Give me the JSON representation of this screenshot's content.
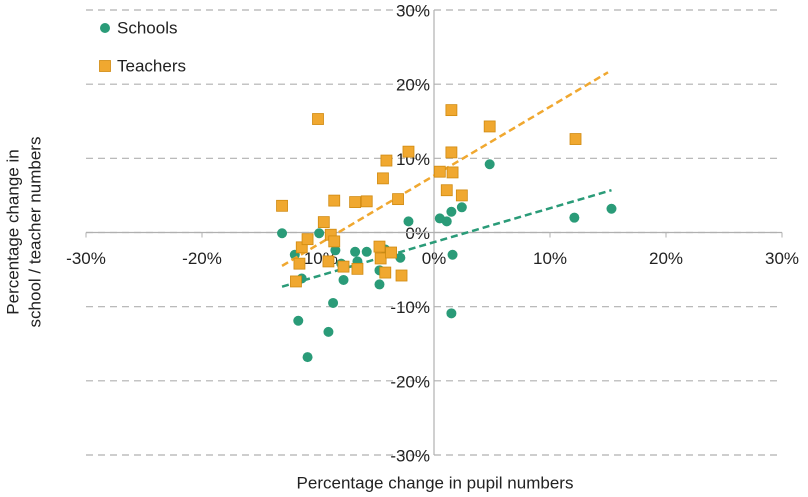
{
  "chart_data": {
    "type": "scatter",
    "xlabel": "Percentage change in pupil numbers",
    "ylabel": [
      "Percentage change in",
      "school / teacher numbers"
    ],
    "xlim": [
      -30,
      30
    ],
    "ylim": [
      -30,
      30
    ],
    "xticks": [
      {
        "value": -30,
        "label": "-30%"
      },
      {
        "value": -20,
        "label": "-20%"
      },
      {
        "value": -10,
        "label": "-10%"
      },
      {
        "value": 0,
        "label": "0%"
      },
      {
        "value": 10,
        "label": "10%"
      },
      {
        "value": 20,
        "label": "20%"
      },
      {
        "value": 30,
        "label": "30%"
      }
    ],
    "yticks": [
      {
        "value": -30,
        "label": "-30%"
      },
      {
        "value": -20,
        "label": "-20%"
      },
      {
        "value": -10,
        "label": "-10%"
      },
      {
        "value": 0,
        "label": "0%"
      },
      {
        "value": 10,
        "label": "10%"
      },
      {
        "value": 20,
        "label": "20%"
      },
      {
        "value": 30,
        "label": "30%"
      }
    ],
    "grid": true,
    "legend": "upper left",
    "series": [
      {
        "name": "Schools",
        "color": "#2a9b78",
        "marker": "circle",
        "x": [
          -13.1,
          -12.0,
          -11.4,
          -11.7,
          -10.9,
          -9.9,
          -9.1,
          -8.7,
          -8.5,
          -8.0,
          -7.8,
          -6.8,
          -6.6,
          -5.8,
          -4.7,
          -4.7,
          -4.2,
          -2.9,
          -2.2,
          0.5,
          1.1,
          1.5,
          1.6,
          1.5,
          2.4,
          4.8,
          12.1,
          15.3
        ],
        "values": [
          -0.1,
          -3.0,
          -6.2,
          -11.9,
          -16.8,
          -0.1,
          -13.4,
          -9.5,
          -2.4,
          -4.2,
          -6.4,
          -2.6,
          -3.9,
          -2.6,
          -5.1,
          -7.0,
          -2.3,
          -3.4,
          1.5,
          1.9,
          1.5,
          2.8,
          -3.0,
          -10.9,
          3.4,
          9.2,
          2.0,
          3.2
        ],
        "trend": {
          "x": [
            -13.1,
            15.3
          ],
          "y": [
            -7.3,
            5.7
          ]
        }
      },
      {
        "name": "Teachers",
        "color": "#f0a830",
        "marker": "square",
        "x": [
          -13.1,
          -11.9,
          -11.6,
          -11.4,
          -10.9,
          -10.0,
          -9.5,
          -9.1,
          -8.9,
          -8.6,
          -8.6,
          -7.8,
          -6.8,
          -6.6,
          -5.8,
          -4.7,
          -4.6,
          -4.4,
          -4.2,
          -4.1,
          -3.7,
          -3.1,
          -2.8,
          -2.2,
          0.5,
          1.1,
          1.5,
          1.5,
          1.6,
          2.4,
          4.8,
          12.2
        ],
        "values": [
          3.6,
          -6.6,
          -4.2,
          -2.0,
          -0.9,
          15.3,
          1.4,
          -3.9,
          -0.3,
          -1.2,
          4.3,
          -4.6,
          4.1,
          -4.9,
          4.2,
          -1.9,
          -3.5,
          7.3,
          -5.4,
          9.7,
          -2.7,
          4.5,
          -5.8,
          10.9,
          8.2,
          5.7,
          16.5,
          10.8,
          8.1,
          5.0,
          14.3,
          12.6
        ],
        "trend": {
          "x": [
            -13.1,
            15.0
          ],
          "y": [
            -4.5,
            21.6
          ]
        }
      }
    ]
  }
}
